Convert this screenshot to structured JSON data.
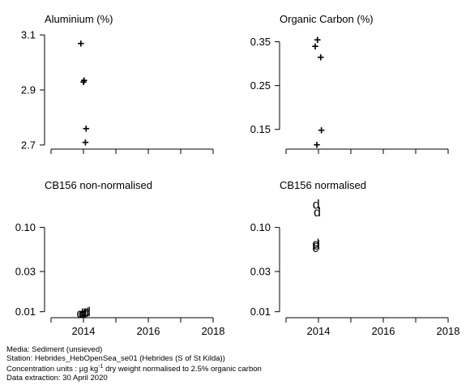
{
  "footer": {
    "media": "Media: Sediment (unsieved)",
    "station": "Station: Hebrides_HebOpenSea_se01 (Hebrides (S of St Kilda))",
    "units_prefix": "Concentration units : µg kg",
    "units_sup": "-1",
    "units_suffix": " dry weight normalised to 2.5% organic carbon",
    "extraction": "Data extraction: 30 April 2020"
  },
  "chart_data": [
    {
      "type": "scatter",
      "title": "Aluminium (%)",
      "marker": "+",
      "xlim": [
        2012.8,
        2018.3
      ],
      "ylim": [
        2.685,
        3.115
      ],
      "yscale": "linear",
      "yticks": [
        2.7,
        2.9,
        3.1
      ],
      "ytick_labels": [
        "2.7",
        "2.9",
        "3.1"
      ],
      "xticks": [
        2013,
        2014,
        2015,
        2016,
        2017,
        2018
      ],
      "xtick_labels": [],
      "points": [
        {
          "x": 2013.92,
          "y": 3.07,
          "label": "+"
        },
        {
          "x": 2014.02,
          "y": 2.935,
          "label": "+"
        },
        {
          "x": 2014.0,
          "y": 2.93,
          "label": "+"
        },
        {
          "x": 2014.08,
          "y": 2.76,
          "label": "+"
        },
        {
          "x": 2014.06,
          "y": 2.71,
          "label": "+"
        }
      ]
    },
    {
      "type": "scatter",
      "title": "Organic Carbon (%)",
      "marker": "+",
      "xlim": [
        2012.8,
        2018.3
      ],
      "ylim": [
        0.105,
        0.375
      ],
      "yscale": "linear",
      "yticks": [
        0.15,
        0.25,
        0.35
      ],
      "ytick_labels": [
        "0.15",
        "0.25",
        "0.35"
      ],
      "xticks": [
        2013,
        2014,
        2015,
        2016,
        2017,
        2018
      ],
      "xtick_labels": [],
      "points": [
        {
          "x": 2013.97,
          "y": 0.355,
          "label": "+"
        },
        {
          "x": 2013.9,
          "y": 0.34,
          "label": "+"
        },
        {
          "x": 2014.07,
          "y": 0.315,
          "label": "+"
        },
        {
          "x": 2014.09,
          "y": 0.148,
          "label": "+"
        },
        {
          "x": 2013.95,
          "y": 0.115,
          "label": "+"
        }
      ]
    },
    {
      "type": "scatter",
      "title": "CB156 non-normalised",
      "marker": "letter",
      "xlim": [
        2012.8,
        2018.3
      ],
      "ylim": [
        0.0085,
        0.23
      ],
      "yscale": "log",
      "yticks": [
        0.01,
        0.03,
        0.1
      ],
      "ytick_labels": [
        "0.01",
        "0.03",
        "0.10"
      ],
      "xticks": [
        2013,
        2014,
        2015,
        2016,
        2017,
        2018
      ],
      "xtick_labels": [
        "2014",
        "2016",
        "2018"
      ],
      "points": [
        {
          "x": 2013.9,
          "y": 0.0097,
          "label": "d"
        },
        {
          "x": 2013.96,
          "y": 0.0097,
          "label": "d"
        },
        {
          "x": 2014.0,
          "y": 0.0097,
          "label": "d"
        },
        {
          "x": 2014.06,
          "y": 0.0099,
          "label": "d"
        },
        {
          "x": 2014.11,
          "y": 0.0101,
          "label": "d"
        }
      ]
    },
    {
      "type": "scatter",
      "title": "CB156 normalised",
      "marker": "letter",
      "xlim": [
        2012.8,
        2018.3
      ],
      "ylim": [
        0.0085,
        0.23
      ],
      "yscale": "log",
      "yticks": [
        0.01,
        0.03,
        0.1
      ],
      "ytick_labels": [
        "0.01",
        "0.03",
        "0.10"
      ],
      "xticks": [
        2013,
        2014,
        2015,
        2016,
        2017,
        2018
      ],
      "xtick_labels": [
        "2014",
        "2016",
        "2018"
      ],
      "points": [
        {
          "x": 2013.93,
          "y": 0.19,
          "label": "d"
        },
        {
          "x": 2013.96,
          "y": 0.155,
          "label": "d"
        },
        {
          "x": 2013.92,
          "y": 0.065,
          "label": "d"
        },
        {
          "x": 2013.94,
          "y": 0.062,
          "label": "d"
        },
        {
          "x": 2013.91,
          "y": 0.058,
          "label": "c"
        }
      ]
    }
  ]
}
